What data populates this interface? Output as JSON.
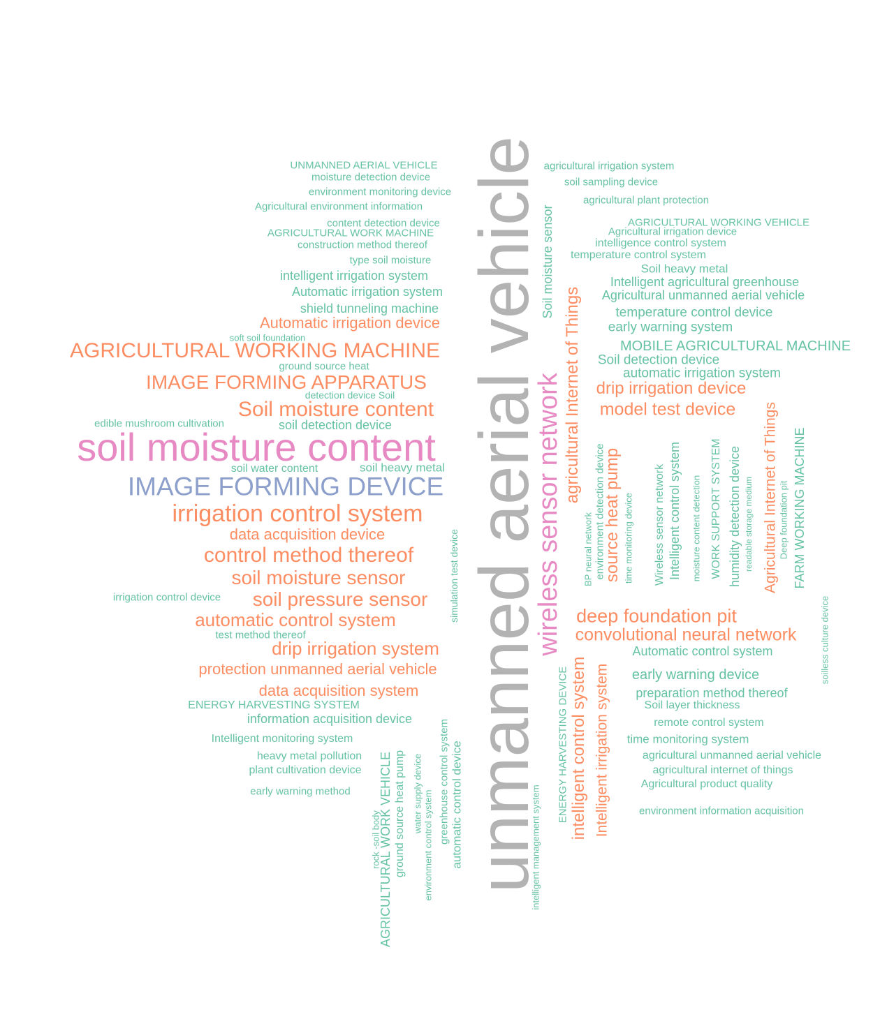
{
  "palette": {
    "green": "#66c2a5",
    "orange": "#fc8d62",
    "blue": "#8da0cb",
    "pink": "#e78ac3",
    "gray": "#b3b3b3"
  },
  "words": [
    {
      "text": "unmanned aerial vehicle",
      "color": "gray",
      "orientation": "vertical"
    },
    {
      "text": "soil moisture content",
      "color": "pink",
      "orientation": "horizontal"
    },
    {
      "text": "wireless sensor network",
      "color": "pink",
      "orientation": "vertical"
    },
    {
      "text": "IMAGE FORMING DEVICE",
      "color": "blue",
      "orientation": "horizontal"
    },
    {
      "text": "irrigation control system",
      "color": "orange",
      "orientation": "horizontal"
    },
    {
      "text": "AGRICULTURAL WORKING MACHINE",
      "color": "orange",
      "orientation": "horizontal"
    },
    {
      "text": "Soil moisture content",
      "color": "orange",
      "orientation": "horizontal"
    },
    {
      "text": "control method thereof",
      "color": "orange",
      "orientation": "horizontal"
    },
    {
      "text": "IMAGE FORMING APPARATUS",
      "color": "orange",
      "orientation": "horizontal"
    },
    {
      "text": "soil moisture sensor",
      "color": "orange",
      "orientation": "horizontal"
    },
    {
      "text": "soil pressure sensor",
      "color": "orange",
      "orientation": "horizontal"
    },
    {
      "text": "deep foundation pit",
      "color": "orange",
      "orientation": "horizontal"
    },
    {
      "text": "automatic control system",
      "color": "orange",
      "orientation": "horizontal"
    },
    {
      "text": "drip irrigation system",
      "color": "orange",
      "orientation": "horizontal"
    },
    {
      "text": "convolutional neural network",
      "color": "orange",
      "orientation": "horizontal"
    },
    {
      "text": "agricultural Internet of Things",
      "color": "orange",
      "orientation": "vertical"
    },
    {
      "text": "model test device",
      "color": "orange",
      "orientation": "horizontal"
    },
    {
      "text": "intelligent control system",
      "color": "orange",
      "orientation": "vertical"
    },
    {
      "text": "drip irrigation device",
      "color": "orange",
      "orientation": "horizontal"
    },
    {
      "text": "Automatic irrigation device",
      "color": "orange",
      "orientation": "horizontal"
    },
    {
      "text": "protection unmanned aerial vehicle",
      "color": "orange",
      "orientation": "horizontal"
    },
    {
      "text": "data acquisition system",
      "color": "orange",
      "orientation": "horizontal"
    },
    {
      "text": "data acquisition device",
      "color": "orange",
      "orientation": "horizontal"
    },
    {
      "text": "source heat pump",
      "color": "orange",
      "orientation": "vertical"
    },
    {
      "text": "Intelligent irrigation system",
      "color": "orange",
      "orientation": "vertical"
    },
    {
      "text": "Agricultural Internet of Things",
      "color": "orange",
      "orientation": "vertical"
    },
    {
      "text": "UNMANNED AERIAL VEHICLE",
      "color": "green",
      "orientation": "horizontal"
    },
    {
      "text": "moisture detection device",
      "color": "green",
      "orientation": "horizontal"
    },
    {
      "text": "environment monitoring device",
      "color": "green",
      "orientation": "horizontal"
    },
    {
      "text": "Agricultural environment information",
      "color": "green",
      "orientation": "horizontal"
    },
    {
      "text": "content detection device",
      "color": "green",
      "orientation": "horizontal"
    },
    {
      "text": "AGRICULTURAL WORK MACHINE",
      "color": "green",
      "orientation": "horizontal"
    },
    {
      "text": "construction method thereof",
      "color": "green",
      "orientation": "horizontal"
    },
    {
      "text": "type soil moisture",
      "color": "green",
      "orientation": "horizontal"
    },
    {
      "text": "intelligent irrigation system",
      "color": "green",
      "orientation": "horizontal"
    },
    {
      "text": "Automatic irrigation system",
      "color": "green",
      "orientation": "horizontal"
    },
    {
      "text": "shield tunneling machine",
      "color": "green",
      "orientation": "horizontal"
    },
    {
      "text": "soft soil foundation",
      "color": "green",
      "orientation": "horizontal"
    },
    {
      "text": "ground source heat",
      "color": "green",
      "orientation": "horizontal"
    },
    {
      "text": "detection device Soil",
      "color": "green",
      "orientation": "horizontal"
    },
    {
      "text": "edible mushroom cultivation",
      "color": "green",
      "orientation": "horizontal"
    },
    {
      "text": "soil detection device",
      "color": "green",
      "orientation": "horizontal"
    },
    {
      "text": "soil water content",
      "color": "green",
      "orientation": "horizontal"
    },
    {
      "text": "soil heavy metal",
      "color": "green",
      "orientation": "horizontal"
    },
    {
      "text": "irrigation control device",
      "color": "green",
      "orientation": "horizontal"
    },
    {
      "text": "test method thereof",
      "color": "green",
      "orientation": "horizontal"
    },
    {
      "text": "ENERGY HARVESTING SYSTEM",
      "color": "green",
      "orientation": "horizontal"
    },
    {
      "text": "information acquisition device",
      "color": "green",
      "orientation": "horizontal"
    },
    {
      "text": "Intelligent monitoring system",
      "color": "green",
      "orientation": "horizontal"
    },
    {
      "text": "heavy metal pollution",
      "color": "green",
      "orientation": "horizontal"
    },
    {
      "text": "plant cultivation device",
      "color": "green",
      "orientation": "horizontal"
    },
    {
      "text": "early warning method",
      "color": "green",
      "orientation": "horizontal"
    },
    {
      "text": "simulation test device",
      "color": "green",
      "orientation": "vertical"
    },
    {
      "text": "AGRICULTURAL WORK VEHICLE",
      "color": "green",
      "orientation": "vertical"
    },
    {
      "text": "rock -soil body",
      "color": "green",
      "orientation": "vertical"
    },
    {
      "text": "ground source heat pump",
      "color": "green",
      "orientation": "vertical"
    },
    {
      "text": "water supply device",
      "color": "green",
      "orientation": "vertical"
    },
    {
      "text": "environment control system",
      "color": "green",
      "orientation": "vertical"
    },
    {
      "text": "greenhouse control system",
      "color": "green",
      "orientation": "vertical"
    },
    {
      "text": "automatic control device",
      "color": "green",
      "orientation": "vertical"
    },
    {
      "text": "intelligent management system",
      "color": "green",
      "orientation": "vertical"
    },
    {
      "text": "ENERGY HARVESTING DEVICE",
      "color": "green",
      "orientation": "vertical"
    },
    {
      "text": "Soil moisture sensor",
      "color": "green",
      "orientation": "vertical"
    },
    {
      "text": "agricultural irrigation system",
      "color": "green",
      "orientation": "horizontal"
    },
    {
      "text": "soil sampling device",
      "color": "green",
      "orientation": "horizontal"
    },
    {
      "text": "agricultural plant protection",
      "color": "green",
      "orientation": "horizontal"
    },
    {
      "text": "AGRICULTURAL WORKING VEHICLE",
      "color": "green",
      "orientation": "horizontal"
    },
    {
      "text": "Agricultural irrigation device",
      "color": "green",
      "orientation": "horizontal"
    },
    {
      "text": "intelligence control system",
      "color": "green",
      "orientation": "horizontal"
    },
    {
      "text": "temperature control system",
      "color": "green",
      "orientation": "horizontal"
    },
    {
      "text": "Soil heavy metal",
      "color": "green",
      "orientation": "horizontal"
    },
    {
      "text": "Intelligent agricultural greenhouse",
      "color": "green",
      "orientation": "horizontal"
    },
    {
      "text": "Agricultural unmanned aerial vehicle",
      "color": "green",
      "orientation": "horizontal"
    },
    {
      "text": "temperature control device",
      "color": "green",
      "orientation": "horizontal"
    },
    {
      "text": "early warning system",
      "color": "green",
      "orientation": "horizontal"
    },
    {
      "text": "MOBILE AGRICULTURAL MACHINE",
      "color": "green",
      "orientation": "horizontal"
    },
    {
      "text": "Soil detection device",
      "color": "green",
      "orientation": "horizontal"
    },
    {
      "text": "automatic irrigation system",
      "color": "green",
      "orientation": "horizontal"
    },
    {
      "text": "BP neural network",
      "color": "green",
      "orientation": "vertical"
    },
    {
      "text": "environment detection device",
      "color": "green",
      "orientation": "vertical"
    },
    {
      "text": "time monitoring device",
      "color": "green",
      "orientation": "vertical"
    },
    {
      "text": "Wireless sensor network",
      "color": "green",
      "orientation": "vertical"
    },
    {
      "text": "Intelligent control system",
      "color": "green",
      "orientation": "vertical"
    },
    {
      "text": "moisture content detection",
      "color": "green",
      "orientation": "vertical"
    },
    {
      "text": "WORK SUPPORT SYSTEM",
      "color": "green",
      "orientation": "vertical"
    },
    {
      "text": "humidity detection device",
      "color": "green",
      "orientation": "vertical"
    },
    {
      "text": "readable storage medium",
      "color": "green",
      "orientation": "vertical"
    },
    {
      "text": "Deep foundation pit",
      "color": "green",
      "orientation": "vertical"
    },
    {
      "text": "FARM WORKING MACHINE",
      "color": "green",
      "orientation": "vertical"
    },
    {
      "text": "soilless culture device",
      "color": "green",
      "orientation": "vertical"
    },
    {
      "text": "Automatic control system",
      "color": "green",
      "orientation": "horizontal"
    },
    {
      "text": "early warning device",
      "color": "green",
      "orientation": "horizontal"
    },
    {
      "text": "preparation method thereof",
      "color": "green",
      "orientation": "horizontal"
    },
    {
      "text": "Soil layer thickness",
      "color": "green",
      "orientation": "horizontal"
    },
    {
      "text": "remote control system",
      "color": "green",
      "orientation": "horizontal"
    },
    {
      "text": "time monitoring system",
      "color": "green",
      "orientation": "horizontal"
    },
    {
      "text": "agricultural unmanned aerial vehicle",
      "color": "green",
      "orientation": "horizontal"
    },
    {
      "text": "agricultural internet of things",
      "color": "green",
      "orientation": "horizontal"
    },
    {
      "text": "Agricultural product quality",
      "color": "green",
      "orientation": "horizontal"
    },
    {
      "text": "environment information acquisition",
      "color": "green",
      "orientation": "horizontal"
    }
  ]
}
